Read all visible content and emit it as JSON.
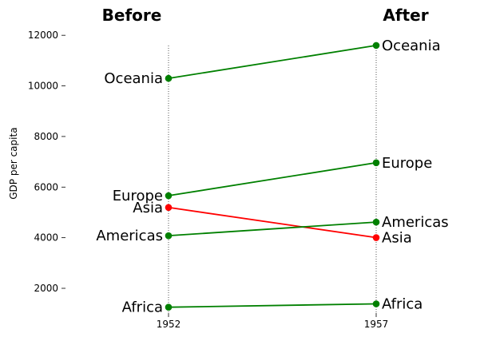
{
  "chart_data": {
    "type": "line",
    "title_left": "Before",
    "title_right": "After",
    "ylabel": "GDP per capita",
    "x": [
      "1952",
      "1957"
    ],
    "yticks": [
      "2000",
      "4000",
      "6000",
      "8000",
      "10000",
      "12000"
    ],
    "ylim": [
      1000,
      13000
    ],
    "grid": false,
    "series": [
      {
        "name": "Oceania",
        "values": [
          10298,
          11599
        ],
        "color": "#008000"
      },
      {
        "name": "Europe",
        "values": [
          5661,
          6963
        ],
        "color": "#008000"
      },
      {
        "name": "Asia",
        "values": [
          5195,
          4004
        ],
        "color": "#ff0000"
      },
      {
        "name": "Americas",
        "values": [
          4079,
          4616
        ],
        "color": "#008000"
      },
      {
        "name": "Africa",
        "values": [
          1253,
          1385
        ],
        "color": "#008000"
      }
    ]
  }
}
